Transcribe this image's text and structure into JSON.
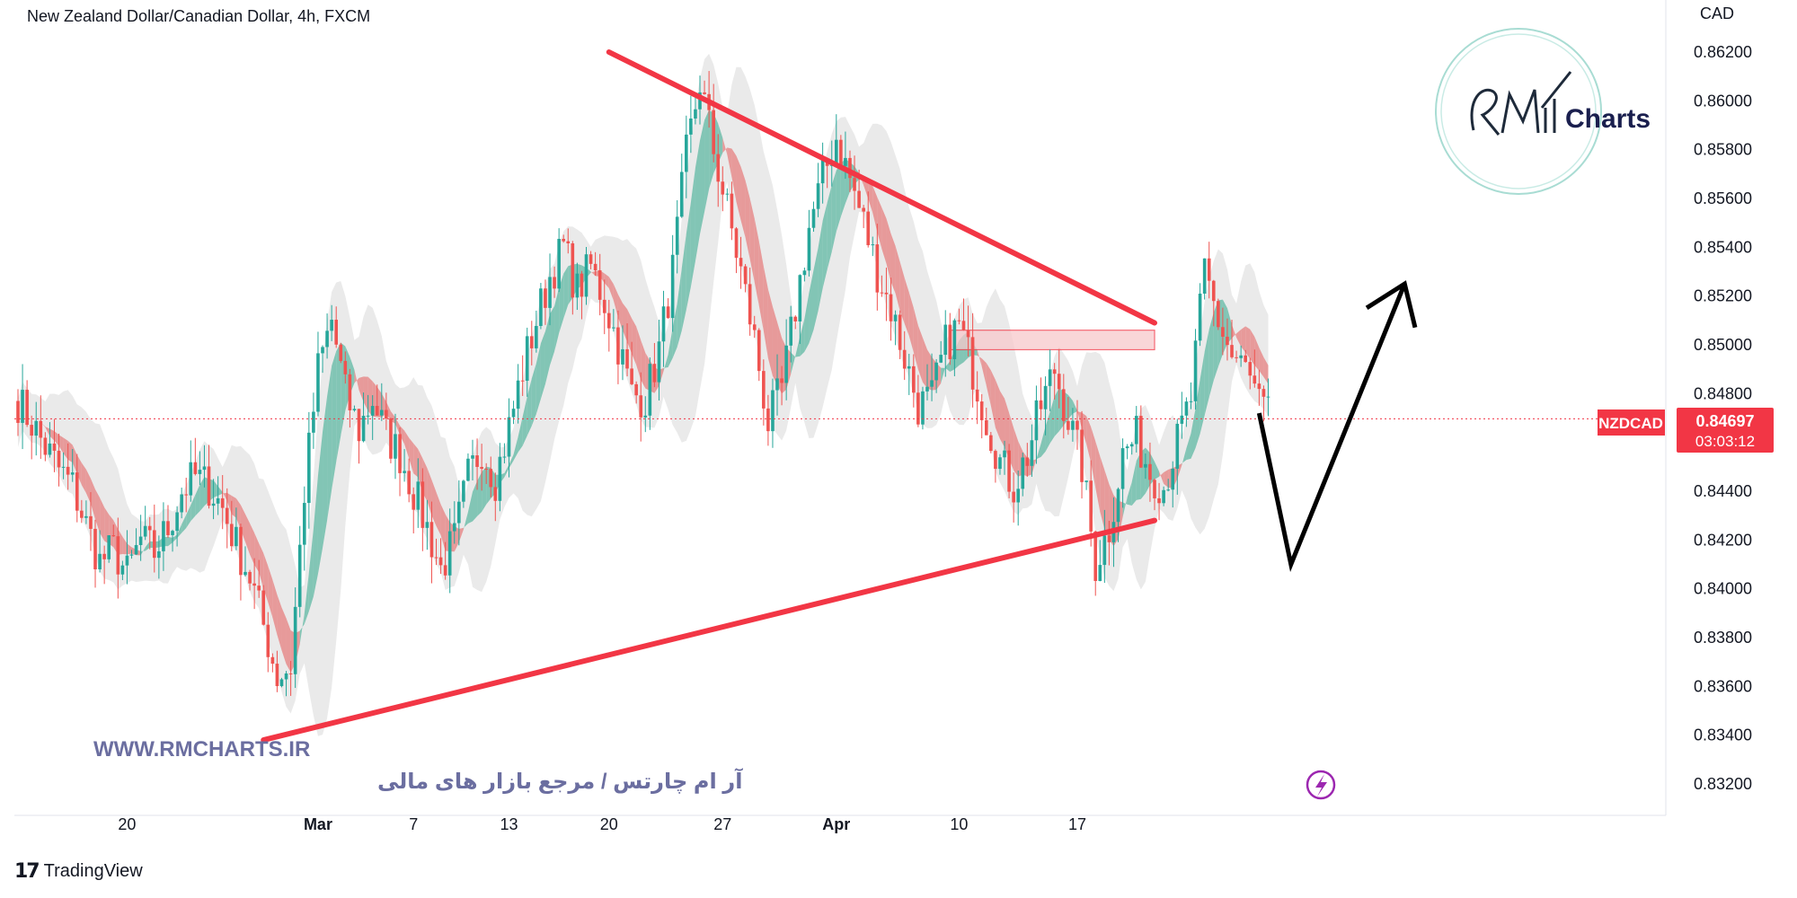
{
  "header": {
    "symbol_title": "New Zealand Dollar/Canadian Dollar, 4h, FXCM",
    "currency_label": "CAD"
  },
  "price_badge": {
    "ticker": "NZDCAD",
    "price": "0.84697",
    "countdown": "03:03:12"
  },
  "watermark": {
    "url": "WWW.RMCHARTS.IR",
    "tagline": "آر ام چارتس / مرجع بازار های مالی",
    "logo_text": "Charts",
    "logo_script": "RM"
  },
  "footer": {
    "brand_mark": "17",
    "brand_name": "TradingView"
  },
  "colors": {
    "trendline": "#f23645",
    "bull_candle": "#26a69a",
    "bear_candle": "#ef5350",
    "ribbon_green": "#5fb8a3",
    "ribbon_red": "#e57f7f",
    "band_gray": "#d9d9d9",
    "zone_fill": "#f8c9cc",
    "arrow": "#000000",
    "flash_icon": "#9c27b0",
    "axis_text": "#131722"
  },
  "icons": {
    "flash": "lightning-icon",
    "footer": "tradingview-logo-icon"
  },
  "chart_data": {
    "type": "candlestick",
    "title": "New Zealand Dollar/Canadian Dollar, 4h, FXCM",
    "ylabel": "CAD",
    "ylim": [
      0.831,
      0.8636
    ],
    "y_ticks": [
      "0.86200",
      "0.86000",
      "0.85800",
      "0.85600",
      "0.85400",
      "0.85200",
      "0.85000",
      "0.84800",
      "0.84400",
      "0.84200",
      "0.84000",
      "0.83800",
      "0.83600",
      "0.83400",
      "0.83200"
    ],
    "x_ticks": [
      "20",
      "Mar",
      "7",
      "13",
      "20",
      "27",
      "Apr",
      "10",
      "17"
    ],
    "current_price": 0.84697,
    "grid": false,
    "candles_anchor_path": [
      [
        0,
        0.8477
      ],
      [
        3,
        0.8468
      ],
      [
        6,
        0.8458
      ],
      [
        9,
        0.8449
      ],
      [
        12,
        0.8442
      ],
      [
        15,
        0.8426
      ],
      [
        18,
        0.8411
      ],
      [
        21,
        0.8416
      ],
      [
        24,
        0.8406
      ],
      [
        27,
        0.842
      ],
      [
        30,
        0.8415
      ],
      [
        33,
        0.8425
      ],
      [
        36,
        0.844
      ],
      [
        39,
        0.8446
      ],
      [
        42,
        0.8442
      ],
      [
        45,
        0.8433
      ],
      [
        48,
        0.8418
      ],
      [
        51,
        0.8405
      ],
      [
        54,
        0.8385
      ],
      [
        57,
        0.8364
      ],
      [
        60,
        0.8368
      ],
      [
        63,
        0.844
      ],
      [
        66,
        0.849
      ],
      [
        69,
        0.851
      ],
      [
        72,
        0.848
      ],
      [
        75,
        0.8465
      ],
      [
        78,
        0.8478
      ],
      [
        81,
        0.8463
      ],
      [
        84,
        0.8455
      ],
      [
        87,
        0.844
      ],
      [
        90,
        0.8425
      ],
      [
        93,
        0.8408
      ],
      [
        96,
        0.842
      ],
      [
        99,
        0.8446
      ],
      [
        102,
        0.8458
      ],
      [
        105,
        0.8445
      ],
      [
        108,
        0.8466
      ],
      [
        111,
        0.849
      ],
      [
        114,
        0.851
      ],
      [
        117,
        0.8528
      ],
      [
        120,
        0.854
      ],
      [
        123,
        0.8522
      ],
      [
        126,
        0.8532
      ],
      [
        129,
        0.8518
      ],
      [
        132,
        0.85
      ],
      [
        135,
        0.848
      ],
      [
        138,
        0.8478
      ],
      [
        141,
        0.8498
      ],
      [
        144,
        0.853
      ],
      [
        147,
        0.8578
      ],
      [
        150,
        0.8608
      ],
      [
        153,
        0.858
      ],
      [
        156,
        0.8555
      ],
      [
        159,
        0.853
      ],
      [
        162,
        0.8502
      ],
      [
        165,
        0.8468
      ],
      [
        168,
        0.8482
      ],
      [
        171,
        0.8515
      ],
      [
        174,
        0.8548
      ],
      [
        177,
        0.8568
      ],
      [
        180,
        0.8585
      ],
      [
        183,
        0.8568
      ],
      [
        186,
        0.855
      ],
      [
        189,
        0.853
      ],
      [
        192,
        0.8515
      ],
      [
        195,
        0.8495
      ],
      [
        198,
        0.8475
      ],
      [
        201,
        0.8478
      ],
      [
        204,
        0.85
      ],
      [
        207,
        0.8508
      ],
      [
        210,
        0.849
      ],
      [
        213,
        0.847
      ],
      [
        216,
        0.8452
      ],
      [
        219,
        0.8442
      ],
      [
        222,
        0.8455
      ],
      [
        225,
        0.8475
      ],
      [
        228,
        0.849
      ],
      [
        231,
        0.847
      ],
      [
        234,
        0.845
      ],
      [
        237,
        0.841
      ],
      [
        240,
        0.8425
      ],
      [
        243,
        0.8455
      ],
      [
        246,
        0.8462
      ],
      [
        249,
        0.8448
      ],
      [
        252,
        0.8442
      ],
      [
        255,
        0.846
      ],
      [
        258,
        0.8478
      ],
      [
        261,
        0.853
      ],
      [
        264,
        0.851
      ],
      [
        267,
        0.8495
      ],
      [
        270,
        0.849
      ],
      [
        273,
        0.8475
      ],
      [
        275,
        0.847
      ]
    ],
    "candle_range": {
      "first_index": 0,
      "last_index": 275
    },
    "x_tick_indices": [
      24,
      66,
      87,
      108,
      130,
      155,
      180,
      207,
      233
    ],
    "trendlines": [
      {
        "from": [
          130,
          0.862
        ],
        "to": [
          250,
          0.8509
        ]
      },
      {
        "from": [
          54,
          0.8338
        ],
        "to": [
          250,
          0.8428
        ]
      }
    ],
    "projected_path": [
      [
        273,
        0.8472
      ],
      [
        280,
        0.841
      ],
      [
        305,
        0.8525
      ]
    ],
    "resistance_zone": {
      "x_from": 205,
      "x_to": 250,
      "y_from": 0.8498,
      "y_to": 0.8506
    },
    "events": [
      {
        "type": "flash",
        "x_index": 200,
        "y": 0.832
      }
    ]
  }
}
